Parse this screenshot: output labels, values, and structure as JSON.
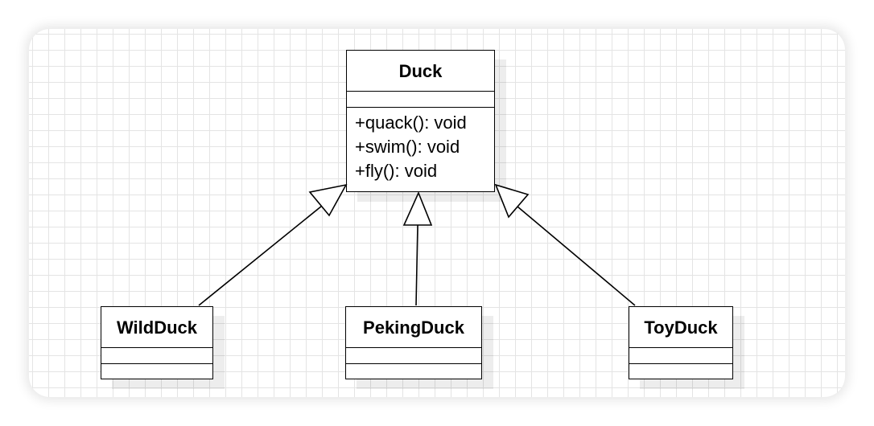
{
  "diagram": {
    "type": "uml-class-diagram",
    "parent": {
      "name": "Duck",
      "attributes": [],
      "methods": [
        "+quack(): void",
        "+swim(): void",
        "+fly(): void"
      ]
    },
    "children": [
      {
        "name": "WildDuck",
        "attributes": [],
        "methods": []
      },
      {
        "name": "PekingDuck",
        "attributes": [],
        "methods": []
      },
      {
        "name": "ToyDuck",
        "attributes": [],
        "methods": []
      }
    ],
    "relationships": [
      {
        "from": "WildDuck",
        "to": "Duck",
        "kind": "generalization"
      },
      {
        "from": "PekingDuck",
        "to": "Duck",
        "kind": "generalization"
      },
      {
        "from": "ToyDuck",
        "to": "Duck",
        "kind": "generalization"
      }
    ]
  },
  "colors": {
    "line": "#000000",
    "grid": "#e4e4e4",
    "box_fill": "#ffffff"
  }
}
